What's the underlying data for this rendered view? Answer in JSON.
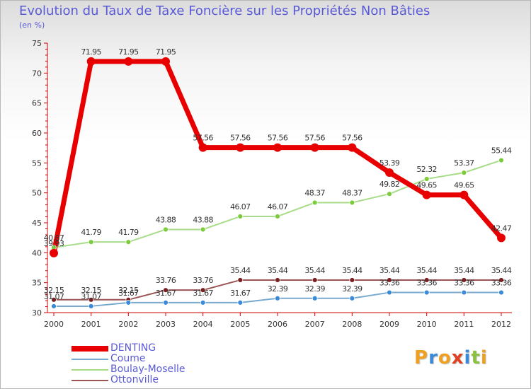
{
  "title": "Evolution du Taux de Taxe Foncière sur les Propriétés Non Bâties",
  "subtitle": "(en %)",
  "logo": {
    "letters": [
      "P",
      "r",
      "o",
      "x",
      "i",
      "t",
      "i"
    ],
    "colors": [
      "#f0a020",
      "#3a8ad8",
      "#f0a020",
      "#e04020",
      "#3a8ad8",
      "#8cc040",
      "#f0a020"
    ]
  },
  "chart_data": {
    "type": "line",
    "title": "Evolution du Taux de Taxe Foncière sur les Propriétés Non Bâties",
    "ylabel": "(en %)",
    "ylim": [
      30,
      75
    ],
    "yticks": [
      30,
      35,
      40,
      45,
      50,
      55,
      60,
      65,
      70,
      75
    ],
    "categories": [
      "2000",
      "2001",
      "2002",
      "2003",
      "2004",
      "2005",
      "2006",
      "2007",
      "2008",
      "2009",
      "2010",
      "2011",
      "2012"
    ],
    "grid": false,
    "legend_position": "bottom-left",
    "series": [
      {
        "name": "DENTING",
        "color": "#e80000",
        "marker": "#e80000",
        "width": 7,
        "marker_r": 6,
        "values": [
          39.93,
          71.95,
          71.95,
          71.95,
          57.56,
          57.56,
          57.56,
          57.56,
          57.56,
          53.39,
          49.65,
          49.65,
          42.47
        ],
        "labels": [
          "39.93",
          "71.95",
          "71.95",
          "71.95",
          "57.56",
          "57.56",
          "57.56",
          "57.56",
          "57.56",
          "53.39",
          "49.65",
          "49.65",
          "42.47"
        ]
      },
      {
        "name": "Coume",
        "color": "#78aad0",
        "marker": "#3a8ad8",
        "width": 2,
        "marker_r": 3.5,
        "values": [
          31.07,
          31.07,
          31.67,
          31.67,
          31.67,
          31.67,
          32.39,
          32.39,
          32.39,
          33.36,
          33.36,
          33.36,
          33.36
        ],
        "labels": [
          "31.07",
          "31.07",
          "31.67",
          "31.67",
          "31.67",
          "31.67",
          "32.39",
          "32.39",
          "32.39",
          "33.36",
          "33.36",
          "33.36",
          "33.36"
        ]
      },
      {
        "name": "Boulay-Moselle",
        "color": "#a8dc88",
        "marker": "#7acc3a",
        "width": 2,
        "marker_r": 3.5,
        "values": [
          40.87,
          41.79,
          41.79,
          43.88,
          43.88,
          46.07,
          46.07,
          48.37,
          48.37,
          49.82,
          52.32,
          53.37,
          55.44
        ],
        "labels": [
          "40.87",
          "41.79",
          "41.79",
          "43.88",
          "43.88",
          "46.07",
          "46.07",
          "48.37",
          "48.37",
          "49.82",
          "52.32",
          "53.37",
          "55.44"
        ]
      },
      {
        "name": "Ottonville",
        "color": "#9a5454",
        "marker": "#7a2020",
        "width": 2,
        "marker_r": 3.5,
        "values": [
          32.15,
          32.15,
          32.15,
          33.76,
          33.76,
          35.44,
          35.44,
          35.44,
          35.44,
          35.44,
          35.44,
          35.44,
          35.44
        ],
        "labels": [
          "32.15",
          "32.15",
          "32.15",
          "33.76",
          "33.76",
          "35.44",
          "35.44",
          "35.44",
          "35.44",
          "35.44",
          "35.44",
          "35.44",
          "35.44"
        ]
      }
    ]
  }
}
